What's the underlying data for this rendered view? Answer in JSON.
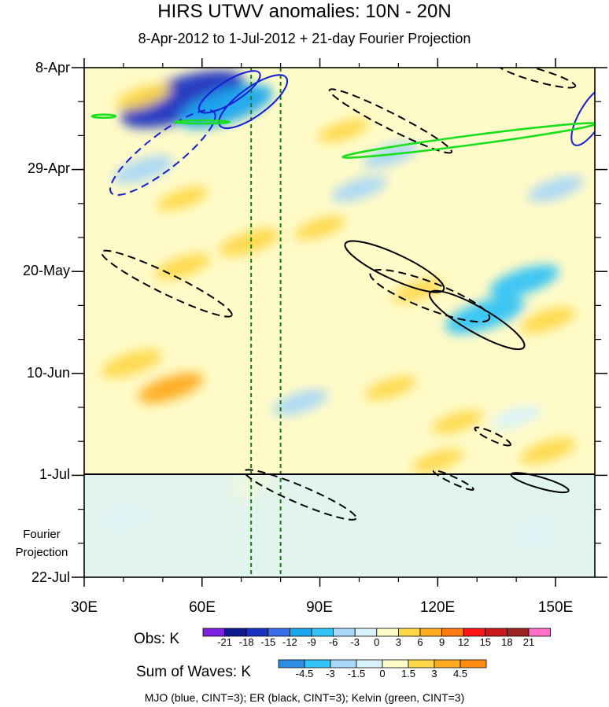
{
  "chart_data": {
    "type": "heatmap",
    "title": "HIRS UTWV anomalies: 10N - 20N",
    "subtitle": "8-Apr-2012 to 1-Jul-2012 + 21-day Fourier Projection",
    "x_axis": {
      "ticks": [
        "30E",
        "60E",
        "90E",
        "120E",
        "150E"
      ],
      "range_deg": [
        30,
        160
      ]
    },
    "y_axis": {
      "ticks": [
        "8-Apr",
        "29-Apr",
        "20-May",
        "10-Jun",
        "1-Jul",
        "22-Jul"
      ],
      "range_days": [
        0,
        105
      ]
    },
    "projection_label": "Fourier Projection",
    "projection_start": "1-Jul",
    "reference_longitudes": [
      72.5,
      80
    ],
    "obs_colorbar": {
      "label": "Obs: K",
      "levels": [
        "-21",
        "-18",
        "-15",
        "-12",
        "-9",
        "-6",
        "-3",
        "0",
        "3",
        "6",
        "9",
        "12",
        "15",
        "18",
        "21"
      ],
      "colors": [
        "#7d22e0",
        "#101a8f",
        "#1a31c2",
        "#3a6ee8",
        "#1ba7ee",
        "#32c3f7",
        "#a9d7f7",
        "#d8f2fb",
        "#fffbc8",
        "#ffd84a",
        "#ffab1d",
        "#ff7a12",
        "#ff1414",
        "#c8181c",
        "#9b2323",
        "#ff70c6"
      ]
    },
    "waves_colorbar": {
      "label": "Sum of Waves: K",
      "levels": [
        "-4.5",
        "-3",
        "-1.5",
        "0",
        "1.5",
        "3",
        "4.5"
      ],
      "colors": [
        "#2e8ee6",
        "#32c3f7",
        "#a9d7f7",
        "#d8f2fb",
        "#fffbc8",
        "#ffd84a",
        "#ffab1d",
        "#ff8c10"
      ]
    },
    "contour_legend": "MJO (blue, CINT=3); ER (black, CINT=3); Kelvin (green, CINT=3)",
    "anomaly_features": [
      {
        "lon": 55,
        "day": 6.5,
        "value": -18
      },
      {
        "lon": 66,
        "day": 8,
        "value": -12
      },
      {
        "lon": 45,
        "day": 6,
        "value": 4
      },
      {
        "lon": 96,
        "day": 13,
        "value": 3
      },
      {
        "lon": 45,
        "day": 21,
        "value": -5
      },
      {
        "lon": 108,
        "day": 18,
        "value": -4
      },
      {
        "lon": 72,
        "day": 36,
        "value": 5
      },
      {
        "lon": 55,
        "day": 27,
        "value": 3
      },
      {
        "lon": 100,
        "day": 25,
        "value": -4
      },
      {
        "lon": 150,
        "day": 25,
        "value": -4
      },
      {
        "lon": 55,
        "day": 41,
        "value": 4
      },
      {
        "lon": 90,
        "day": 33,
        "value": 3
      },
      {
        "lon": 115,
        "day": 46,
        "value": 3
      },
      {
        "lon": 142,
        "day": 44,
        "value": -7
      },
      {
        "lon": 132,
        "day": 51,
        "value": -9
      },
      {
        "lon": 148,
        "day": 52,
        "value": 4
      },
      {
        "lon": 42,
        "day": 61,
        "value": 5
      },
      {
        "lon": 52,
        "day": 66,
        "value": 6
      },
      {
        "lon": 85,
        "day": 69,
        "value": -4
      },
      {
        "lon": 108,
        "day": 66,
        "value": 3
      },
      {
        "lon": 125,
        "day": 73,
        "value": 3
      },
      {
        "lon": 140,
        "day": 72,
        "value": -3
      },
      {
        "lon": 148,
        "day": 79,
        "value": 4
      },
      {
        "lon": 120,
        "day": 81,
        "value": 3
      },
      {
        "lon": 40,
        "day": 93,
        "value": -1
      },
      {
        "lon": 72,
        "day": 86,
        "value": 1
      },
      {
        "lon": 145,
        "day": 96,
        "value": -1
      }
    ],
    "wave_contours": [
      {
        "wave": "MJO",
        "sign": "negative",
        "lon": 67,
        "day": 5,
        "rx": 45,
        "ry": 14,
        "angle": 32
      },
      {
        "wave": "MJO",
        "sign": "negative",
        "lon": 73,
        "day": 7,
        "rx": 52,
        "ry": 18,
        "angle": 36
      },
      {
        "wave": "MJO",
        "sign": "positive",
        "lon": 50,
        "day": 17.5,
        "rx": 83,
        "ry": 22,
        "angle": 38
      },
      {
        "wave": "MJO",
        "sign": "negative",
        "lon": 159,
        "day": 10,
        "rx": 42,
        "ry": 15,
        "angle": 60
      },
      {
        "wave": "ER",
        "sign": "positive",
        "lon": 108,
        "day": 11,
        "rx": 87,
        "ry": 10,
        "angle": -27
      },
      {
        "wave": "ER",
        "sign": "positive",
        "lon": 145,
        "day": 1.5,
        "rx": 52,
        "ry": 8,
        "angle": -16
      },
      {
        "wave": "ER",
        "sign": "positive",
        "lon": 51,
        "day": 44.5,
        "rx": 92,
        "ry": 13,
        "angle": -26
      },
      {
        "wave": "ER",
        "sign": "negative",
        "lon": 109,
        "day": 41,
        "rx": 69,
        "ry": 16,
        "angle": -25
      },
      {
        "wave": "ER",
        "sign": "positive",
        "lon": 118,
        "day": 47,
        "rx": 81,
        "ry": 17,
        "angle": -21
      },
      {
        "wave": "ER",
        "sign": "negative",
        "lon": 130,
        "day": 52,
        "rx": 69,
        "ry": 16,
        "angle": -30
      },
      {
        "wave": "ER",
        "sign": "positive",
        "lon": 134,
        "day": 76,
        "rx": 25,
        "ry": 5,
        "angle": -25
      },
      {
        "wave": "ER",
        "sign": "positive",
        "lon": 85,
        "day": 88,
        "rx": 77,
        "ry": 11,
        "angle": -23
      },
      {
        "wave": "ER",
        "sign": "positive",
        "lon": 124,
        "day": 85,
        "rx": 28,
        "ry": 4,
        "angle": -25
      },
      {
        "wave": "ER",
        "sign": "negative",
        "lon": 146,
        "day": 85.5,
        "rx": 38,
        "ry": 7,
        "angle": -16
      },
      {
        "wave": "Kelvin",
        "sign": "positive",
        "lon": 128,
        "day": 15,
        "rx": 162,
        "ry": 6,
        "angle": 7.5
      },
      {
        "wave": "Kelvin",
        "sign": "positive",
        "lon": 35,
        "day": 10,
        "rx": 15,
        "ry": 2,
        "angle": 0
      },
      {
        "wave": "Kelvin",
        "sign": "positive",
        "lon": 60,
        "day": 11.2,
        "rx": 35,
        "ry": 2,
        "angle": 0
      }
    ]
  }
}
